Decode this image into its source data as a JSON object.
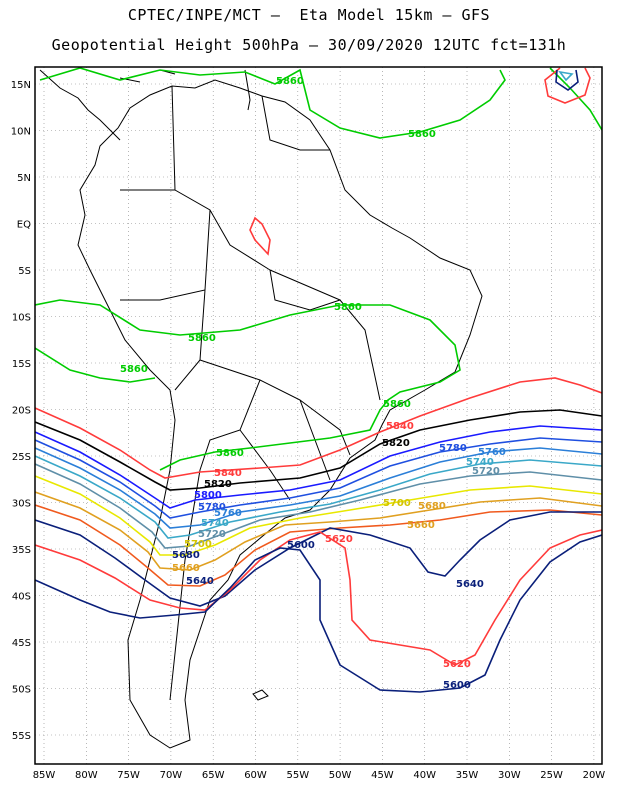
{
  "header": {
    "line1": "CPTEC/INPE/MCT –  Eta Model 15km – GFS",
    "line2": "Geopotential Height 500hPa – 30/09/2020 12UTC fct=131h"
  },
  "map": {
    "lat_labels": [
      "15N",
      "10N",
      "5N",
      "EQ",
      "5S",
      "10S",
      "15S",
      "20S",
      "25S",
      "30S",
      "35S",
      "40S",
      "45S",
      "50S",
      "55S"
    ],
    "lon_labels": [
      "85W",
      "80W",
      "75W",
      "70W",
      "65W",
      "60W",
      "55W",
      "50W",
      "45W",
      "40W",
      "35W",
      "30W",
      "25W",
      "20W"
    ],
    "grid": "dotted",
    "contour_interval_m": 20,
    "contours": [
      {
        "level": "5860",
        "color": "#00cc00"
      },
      {
        "level": "5840",
        "color": "#ff3b3b"
      },
      {
        "level": "5820",
        "color": "#000000"
      },
      {
        "level": "5800",
        "color": "#1a1aff"
      },
      {
        "level": "5780",
        "color": "#1f4fe0"
      },
      {
        "level": "5760",
        "color": "#2b7fd8"
      },
      {
        "level": "5740",
        "color": "#3aa8c8"
      },
      {
        "level": "5720",
        "color": "#5f8fa8"
      },
      {
        "level": "5700",
        "color": "#e8e800"
      },
      {
        "level": "5680",
        "color": "#e0a020"
      },
      {
        "level": "5660",
        "color": "#f05a1e"
      },
      {
        "level": "5640",
        "color": "#0a1f7a"
      },
      {
        "level": "5620",
        "color": "#ff3b3b"
      },
      {
        "level": "5600",
        "color": "#0a1f7a"
      }
    ]
  }
}
